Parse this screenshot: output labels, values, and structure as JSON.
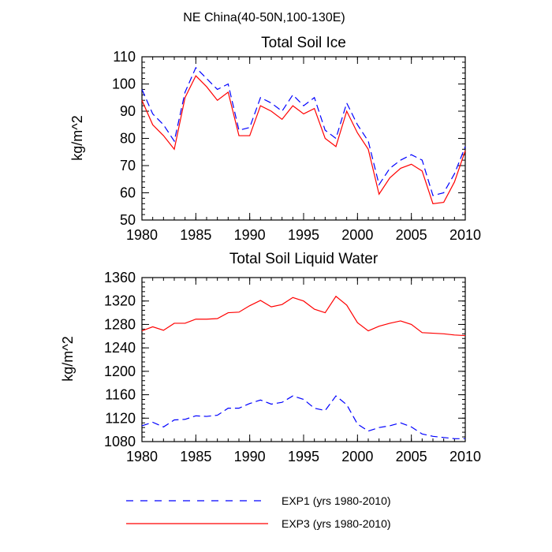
{
  "figure_title": "NE China(40-50N,100-130E)",
  "colors": {
    "exp1": "#0000ff",
    "exp3": "#ff0000",
    "axis": "#000000"
  },
  "legend": [
    {
      "key": "exp1",
      "label": "EXP1 (yrs 1980-2010)",
      "style": "dashed"
    },
    {
      "key": "exp3",
      "label": "EXP3 (yrs 1980-2010)",
      "style": "solid"
    }
  ],
  "chart_data": [
    {
      "type": "line",
      "title": "Total Soil Ice",
      "xlabel": "",
      "ylabel": "kg/m^2",
      "xlim": [
        1980,
        2010
      ],
      "ylim": [
        50,
        110
      ],
      "xticks": [
        1980,
        1985,
        1990,
        1995,
        2000,
        2005,
        2010
      ],
      "yticks": [
        50,
        60,
        70,
        80,
        90,
        100,
        110
      ],
      "x": [
        1980,
        1981,
        1982,
        1983,
        1984,
        1985,
        1986,
        1987,
        1988,
        1989,
        1990,
        1991,
        1992,
        1993,
        1994,
        1995,
        1996,
        1997,
        1998,
        1999,
        2000,
        2001,
        2002,
        2003,
        2004,
        2005,
        2006,
        2007,
        2008,
        2009,
        2010
      ],
      "series": [
        {
          "name": "EXP1 (yrs 1980-2010)",
          "key": "exp1",
          "values": [
            98,
            89,
            85,
            79,
            97,
            106,
            102,
            98,
            100,
            83,
            84,
            95,
            93,
            90,
            96,
            92,
            95,
            83,
            80,
            93,
            85,
            79,
            63,
            69,
            72,
            74,
            72,
            59,
            60,
            67,
            77
          ]
        },
        {
          "name": "EXP3 (yrs 1980-2010)",
          "key": "exp3",
          "values": [
            94,
            85,
            81,
            76,
            95,
            103,
            99,
            94,
            97,
            81,
            81,
            92,
            90,
            87,
            92,
            89,
            91,
            80,
            77,
            90,
            82,
            76,
            59.5,
            65.5,
            69,
            70.5,
            68,
            56,
            56.5,
            64,
            75.5
          ]
        }
      ]
    },
    {
      "type": "line",
      "title": "Total Soil Liquid Water",
      "xlabel": "",
      "ylabel": "kg/m^2",
      "xlim": [
        1980,
        2010
      ],
      "ylim": [
        1080,
        1360
      ],
      "xticks": [
        1980,
        1985,
        1990,
        1995,
        2000,
        2005,
        2010
      ],
      "yticks": [
        1080,
        1120,
        1160,
        1200,
        1240,
        1280,
        1320,
        1360
      ],
      "x": [
        1980,
        1981,
        1982,
        1983,
        1984,
        1985,
        1986,
        1987,
        1988,
        1989,
        1990,
        1991,
        1992,
        1993,
        1994,
        1995,
        1996,
        1997,
        1998,
        1999,
        2000,
        2001,
        2002,
        2003,
        2004,
        2005,
        2006,
        2007,
        2008,
        2009,
        2010
      ],
      "series": [
        {
          "name": "EXP1 (yrs 1980-2010)",
          "key": "exp1",
          "values": [
            1107,
            1113,
            1105,
            1117,
            1118,
            1124,
            1123,
            1125,
            1137,
            1137,
            1145,
            1151,
            1144,
            1147,
            1158,
            1152,
            1137,
            1133,
            1158,
            1143,
            1110,
            1098,
            1104,
            1107,
            1112,
            1105,
            1093,
            1089,
            1087,
            1085,
            1085
          ]
        },
        {
          "name": "EXP3 (yrs 1980-2010)",
          "key": "exp3",
          "values": [
            1269,
            1276,
            1270,
            1282,
            1282,
            1289,
            1289,
            1290,
            1300,
            1301,
            1312,
            1321,
            1310,
            1314,
            1326,
            1320,
            1306,
            1300,
            1328,
            1313,
            1283,
            1269,
            1277,
            1282,
            1286,
            1280,
            1266,
            1265,
            1264,
            1262,
            1261
          ]
        }
      ]
    }
  ]
}
